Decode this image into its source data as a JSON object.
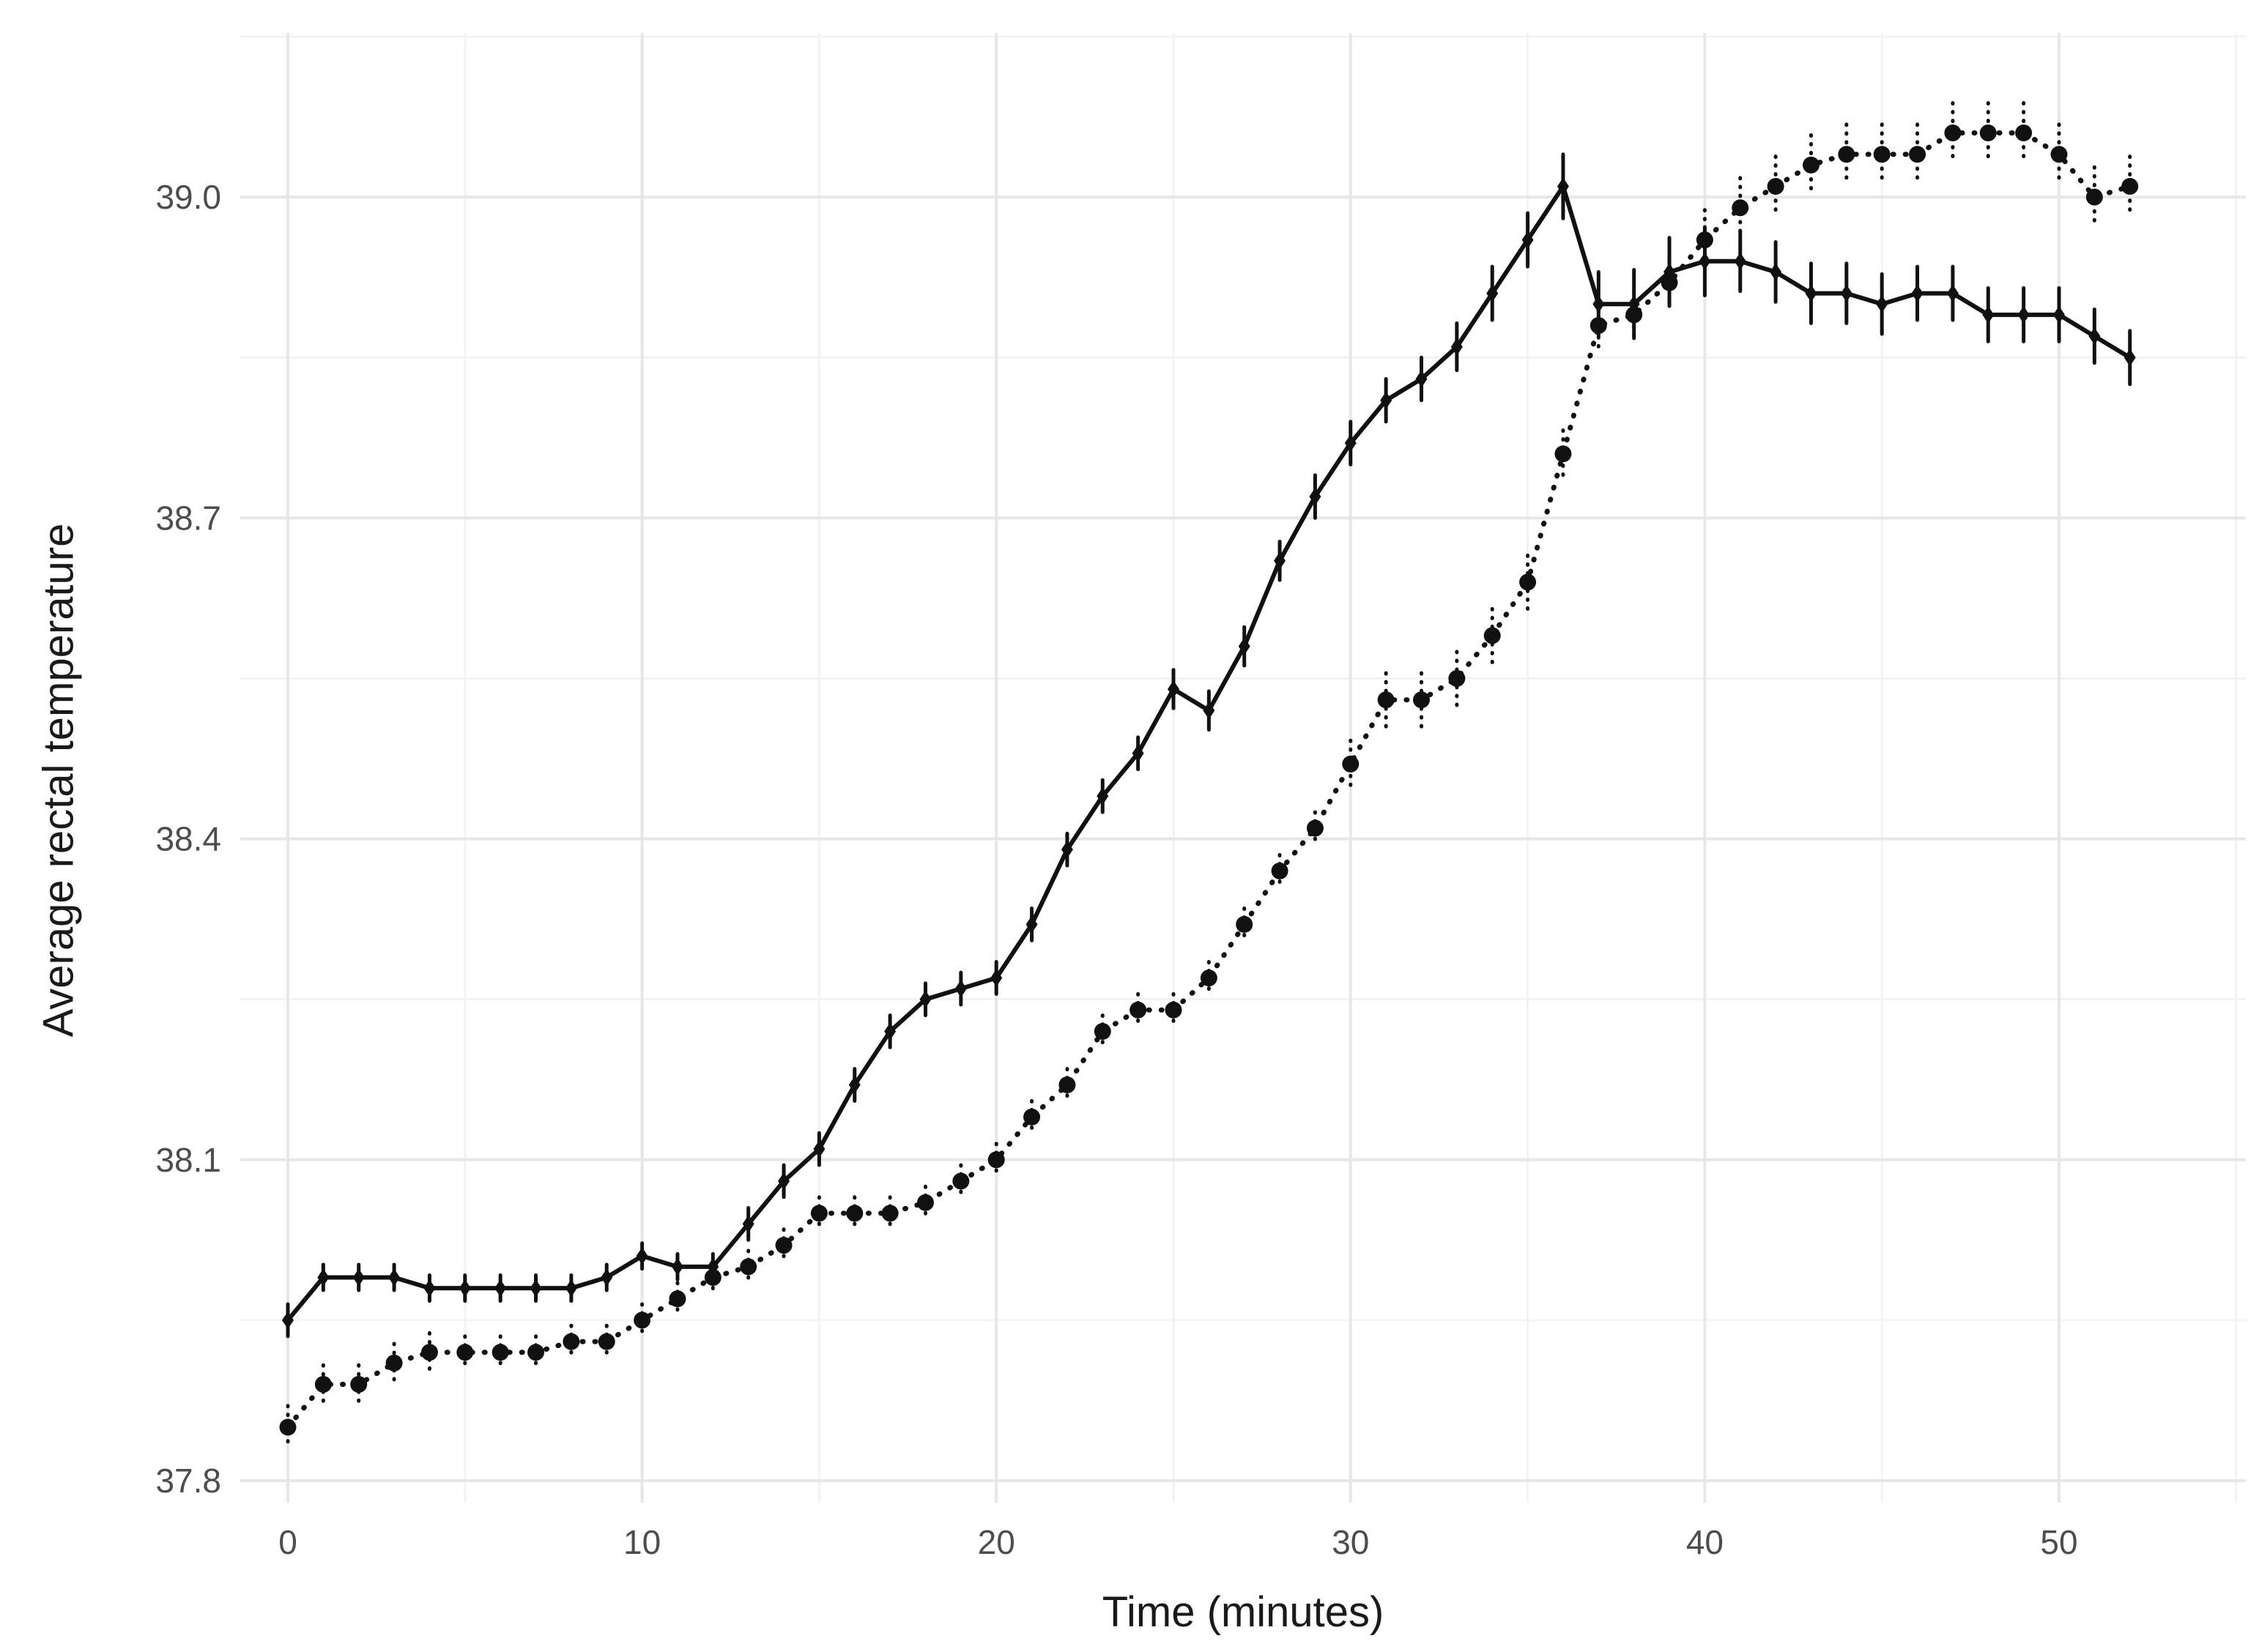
{
  "figure": {
    "kind": "statistical line chart, ggplot-minimal style",
    "background_color": "#ffffff",
    "major_grid_color": "#e7e7e7",
    "minor_grid_color": "#f3f3f3",
    "tick_label_color": "#4d4d4d",
    "axis_title_color": "#1a1a1a",
    "series_color": "#111111"
  },
  "chart_data": {
    "type": "line",
    "title": "",
    "xlabel": "Time (minutes)",
    "ylabel": "Average rectal temperature",
    "legend": "none",
    "grid": "major+minor",
    "xlim": [
      -1.3,
      55.2
    ],
    "ylim": [
      37.78,
      39.16
    ],
    "x_ticks": [
      0,
      10,
      20,
      30,
      40,
      50
    ],
    "x_tick_labels": [
      "0",
      "10",
      "20",
      "30",
      "40",
      "50"
    ],
    "y_ticks": [
      37.8,
      38.1,
      38.4,
      38.7,
      39.0
    ],
    "y_tick_labels": [
      "37.8",
      "38.1",
      "38.4",
      "38.7",
      "39.0"
    ],
    "x_minor_ticks": [
      5,
      15,
      25,
      35,
      45,
      55
    ],
    "y_minor_ticks": [
      37.95,
      38.25,
      38.55,
      38.85,
      39.15
    ],
    "x": [
      0,
      1,
      2,
      3,
      4,
      5,
      6,
      7,
      8,
      9,
      10,
      11,
      12,
      13,
      14,
      15,
      16,
      17,
      18,
      19,
      20,
      21,
      22,
      23,
      24,
      25,
      26,
      27,
      28,
      29,
      30,
      31,
      32,
      33,
      34,
      35,
      36,
      37,
      38,
      39,
      40,
      41,
      42,
      43,
      44,
      45,
      46,
      47,
      48,
      49,
      50,
      51,
      52
    ],
    "series": [
      {
        "name": "solid-line-series",
        "line_style": "solid",
        "marker": "diamond",
        "error_bar_style": "solid",
        "values": [
          37.95,
          37.99,
          37.99,
          37.99,
          37.98,
          37.98,
          37.98,
          37.98,
          37.98,
          37.99,
          38.01,
          38.0,
          38.0,
          38.04,
          38.08,
          38.11,
          38.17,
          38.22,
          38.25,
          38.26,
          38.27,
          38.32,
          38.39,
          38.44,
          38.48,
          38.54,
          38.52,
          38.58,
          38.66,
          38.72,
          38.77,
          38.81,
          38.83,
          38.86,
          38.91,
          38.96,
          39.01,
          38.9,
          38.9,
          38.93,
          38.94,
          38.94,
          38.93,
          38.91,
          38.91,
          38.9,
          38.91,
          38.91,
          38.89,
          38.89,
          38.89,
          38.87,
          38.85
        ],
        "error": [
          0.015,
          0.012,
          0.012,
          0.012,
          0.012,
          0.012,
          0.012,
          0.012,
          0.012,
          0.012,
          0.012,
          0.012,
          0.012,
          0.015,
          0.015,
          0.015,
          0.015,
          0.015,
          0.015,
          0.015,
          0.015,
          0.015,
          0.015,
          0.015,
          0.015,
          0.018,
          0.018,
          0.018,
          0.018,
          0.02,
          0.02,
          0.02,
          0.02,
          0.022,
          0.025,
          0.025,
          0.03,
          0.03,
          0.032,
          0.032,
          0.032,
          0.028,
          0.028,
          0.028,
          0.028,
          0.028,
          0.025,
          0.025,
          0.025,
          0.025,
          0.025,
          0.025,
          0.025
        ]
      },
      {
        "name": "dotted-line-series",
        "line_style": "dotted",
        "marker": "circle",
        "error_bar_style": "dotted",
        "values": [
          37.85,
          37.89,
          37.89,
          37.91,
          37.92,
          37.92,
          37.92,
          37.92,
          37.93,
          37.93,
          37.95,
          37.97,
          37.99,
          38.0,
          38.02,
          38.05,
          38.05,
          38.05,
          38.06,
          38.08,
          38.1,
          38.14,
          38.17,
          38.22,
          38.24,
          38.24,
          38.27,
          38.32,
          38.37,
          38.41,
          38.47,
          38.53,
          38.53,
          38.55,
          38.59,
          38.64,
          38.76,
          38.88,
          38.89,
          38.92,
          38.96,
          38.99,
          39.01,
          39.03,
          39.04,
          39.04,
          39.04,
          39.06,
          39.06,
          39.06,
          39.04,
          39.0,
          39.01
        ],
        "error": [
          0.02,
          0.018,
          0.018,
          0.018,
          0.018,
          0.015,
          0.015,
          0.015,
          0.015,
          0.015,
          0.015,
          0.015,
          0.015,
          0.015,
          0.015,
          0.015,
          0.015,
          0.015,
          0.015,
          0.015,
          0.015,
          0.015,
          0.015,
          0.015,
          0.015,
          0.015,
          0.015,
          0.015,
          0.015,
          0.015,
          0.022,
          0.025,
          0.025,
          0.025,
          0.025,
          0.025,
          0.022,
          0.022,
          0.022,
          0.022,
          0.028,
          0.028,
          0.028,
          0.028,
          0.028,
          0.028,
          0.028,
          0.028,
          0.028,
          0.028,
          0.028,
          0.028,
          0.028
        ]
      }
    ]
  }
}
